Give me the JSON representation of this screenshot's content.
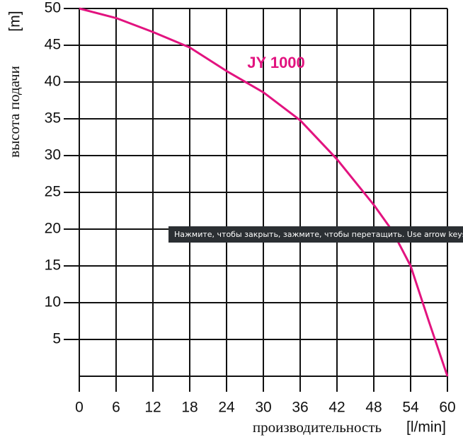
{
  "chart_data": {
    "type": "line",
    "x_label": "производительность",
    "x_unit": "[l/min]",
    "y_label": "высота подачи",
    "y_unit": "[m]",
    "x": [
      0,
      6,
      12,
      18,
      24,
      30,
      36,
      42,
      48,
      51,
      54,
      57,
      60
    ],
    "series": [
      {
        "name": "JY 1000",
        "color": "#e2137f",
        "values": [
          50,
          48.7,
          46.8,
          44.7,
          41.5,
          38.6,
          34.8,
          29.5,
          23.3,
          19.8,
          15,
          7.4,
          0
        ]
      }
    ],
    "xlim": [
      0,
      60
    ],
    "xticks": [
      0,
      6,
      12,
      18,
      24,
      30,
      36,
      42,
      48,
      54,
      60
    ],
    "ylim": [
      0,
      50
    ],
    "yticks": [
      5,
      10,
      15,
      20,
      25,
      30,
      35,
      40,
      45,
      50
    ],
    "grid": true
  },
  "tooltip": {
    "text": "Нажмите, чтобы закрыть, зажмите, чтобы перетащить. Use arrow keys for m"
  }
}
